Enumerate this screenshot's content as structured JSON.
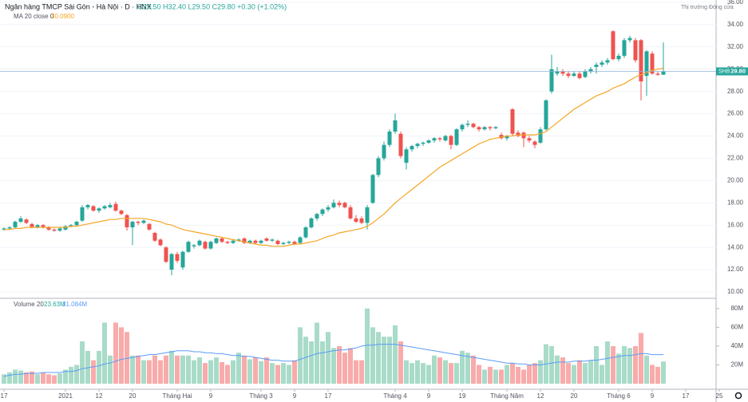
{
  "chart_data": [
    {
      "type": "candlestick",
      "title": "Ngân hàng TMCP Sài Gòn - Hà Nội · D · HNX",
      "ohlc_label": "O29.50 H32.40 L29.50 C29.80 +0.30 (+1.02%)",
      "market_status": "Thị trường Đóng cửa",
      "last_label": {
        "symbol": "SHB",
        "price": "29.80"
      },
      "up_color": "#26a69a",
      "down_color": "#ef5350",
      "ylim": [
        9.5,
        36.21
      ],
      "xlim": [
        -0.714,
        127.43
      ],
      "grid": true,
      "yticks": [
        {
          "value": 10,
          "label": "10.00"
        },
        {
          "value": 12,
          "label": "12.00"
        },
        {
          "value": 14,
          "label": "14.00"
        },
        {
          "value": 16,
          "label": "16.00"
        },
        {
          "value": 18,
          "label": "18.00"
        },
        {
          "value": 20,
          "label": "20.00"
        },
        {
          "value": 22,
          "label": "22.00"
        },
        {
          "value": 24,
          "label": "24.00"
        },
        {
          "value": 26,
          "label": "26.00"
        },
        {
          "value": 28,
          "label": "28.00"
        },
        {
          "value": 30,
          "label": "30.00"
        },
        {
          "value": 32,
          "label": "32.00"
        },
        {
          "value": 34,
          "label": "34.00"
        },
        {
          "value": 36,
          "label": "36.00"
        }
      ],
      "xticks": [
        {
          "value": 0,
          "label": "17"
        },
        {
          "value": 11,
          "label": "2021"
        },
        {
          "value": 17,
          "label": "12"
        },
        {
          "value": 23,
          "label": "20"
        },
        {
          "value": 31,
          "label": "Tháng Hai"
        },
        {
          "value": 37,
          "label": "9"
        },
        {
          "value": 46,
          "label": "Tháng 3"
        },
        {
          "value": 52,
          "label": "9"
        },
        {
          "value": 58,
          "label": "17"
        },
        {
          "value": 70,
          "label": "Tháng 4"
        },
        {
          "value": 76,
          "label": "9"
        },
        {
          "value": 82,
          "label": "19"
        },
        {
          "value": 90,
          "label": "Tháng Năm"
        },
        {
          "value": 96,
          "label": "12"
        },
        {
          "value": 102,
          "label": "20"
        },
        {
          "value": 110,
          "label": "Tháng 6"
        },
        {
          "value": 116,
          "label": "9"
        },
        {
          "value": 122,
          "label": "17"
        },
        {
          "value": 128,
          "label": "25"
        }
      ],
      "open": [
        15.6,
        15.7,
        15.8,
        16.3,
        16.5,
        16.1,
        15.8,
        16.0,
        15.8,
        15.6,
        15.5,
        15.6,
        15.9,
        16.0,
        16.4,
        17.6,
        17.7,
        17.3,
        17.5,
        17.6,
        17.9,
        17.3,
        16.9,
        15.8,
        16.3,
        16.2,
        16.1,
        15.3,
        14.7,
        14.0,
        12.0,
        13.4,
        12.2,
        13.6,
        14.1,
        14.2,
        14.5,
        13.9,
        14.4,
        14.8,
        14.5,
        14.4,
        14.6,
        14.8,
        14.4,
        14.6,
        14.4,
        14.8,
        14.6,
        14.6,
        14.3,
        14.4,
        14.5,
        14.4,
        14.9,
        15.8,
        16.6,
        17.0,
        17.4,
        17.6,
        18.0,
        18.0,
        17.6,
        16.6,
        16.6,
        16.2,
        18.0,
        20.5,
        22.0,
        23.2,
        24.4,
        24.2,
        21.6,
        22.8,
        23.1,
        23.3,
        23.4,
        23.6,
        23.8,
        23.6,
        24.0,
        23.2,
        24.6,
        25.0,
        25.1,
        24.8,
        24.6,
        24.8,
        24.7,
        24.1,
        23.8,
        26.4,
        24.3,
        24.3,
        23.8,
        23.5,
        23.4,
        24.6,
        28.0,
        29.6,
        29.8,
        29.6,
        29.4,
        29.6,
        29.3,
        29.8,
        30.2,
        30.4,
        30.6,
        33.4,
        30.9,
        31.2,
        32.6,
        32.6,
        32.6,
        29.4,
        31.4,
        29.6,
        29.5
      ],
      "high": [
        15.8,
        15.9,
        16.4,
        16.8,
        16.6,
        16.2,
        16.1,
        16.1,
        15.9,
        15.7,
        15.8,
        16.0,
        16.1,
        16.4,
        17.8,
        17.9,
        17.8,
        17.6,
        17.8,
        18.0,
        18.1,
        17.4,
        17.0,
        16.4,
        16.4,
        16.5,
        16.2,
        15.4,
        14.8,
        14.1,
        13.5,
        13.6,
        13.7,
        14.6,
        14.3,
        14.7,
        14.6,
        14.6,
        14.9,
        14.9,
        14.6,
        14.7,
        14.8,
        14.9,
        14.7,
        14.7,
        14.7,
        14.9,
        14.8,
        14.7,
        14.5,
        14.6,
        14.6,
        15.0,
        15.9,
        16.7,
        17.1,
        17.5,
        17.8,
        18.3,
        18.2,
        18.1,
        17.8,
        16.9,
        16.8,
        17.8,
        20.6,
        22.2,
        23.5,
        24.6,
        26.0,
        24.4,
        23.0,
        23.2,
        23.4,
        23.5,
        23.7,
        23.9,
        23.9,
        24.1,
        24.1,
        24.7,
        25.1,
        25.4,
        25.2,
        24.9,
        24.9,
        24.9,
        24.9,
        24.3,
        24.1,
        26.5,
        24.5,
        24.4,
        24.0,
        23.6,
        24.8,
        27.3,
        31.3,
        30.2,
        30.0,
        29.8,
        29.8,
        29.8,
        30.0,
        30.2,
        30.6,
        30.8,
        31.0,
        33.5,
        31.4,
        32.8,
        33.0,
        32.8,
        32.7,
        31.7,
        31.6,
        29.8,
        32.4
      ],
      "low": [
        15.5,
        15.6,
        15.7,
        16.2,
        16.1,
        15.7,
        15.7,
        15.7,
        15.5,
        15.4,
        15.4,
        15.5,
        15.8,
        15.9,
        16.3,
        17.4,
        17.2,
        17.1,
        17.4,
        17.5,
        17.2,
        16.9,
        15.5,
        14.2,
        16.0,
        16.1,
        15.5,
        14.5,
        14.1,
        12.6,
        11.5,
        12.6,
        12.0,
        13.5,
        13.9,
        14.1,
        13.8,
        13.8,
        14.3,
        14.4,
        14.3,
        14.3,
        14.5,
        14.3,
        14.3,
        14.3,
        14.3,
        14.5,
        14.5,
        14.2,
        14.2,
        14.3,
        14.2,
        14.3,
        14.8,
        15.7,
        16.4,
        16.8,
        17.2,
        17.5,
        17.6,
        17.5,
        16.5,
        16.2,
        16.1,
        15.6,
        17.9,
        20.3,
        21.8,
        23.0,
        24.2,
        22.0,
        21.0,
        22.6,
        22.9,
        23.1,
        23.3,
        23.4,
        23.5,
        23.5,
        22.8,
        23.1,
        24.4,
        24.8,
        24.7,
        24.4,
        24.5,
        24.5,
        24.6,
        23.7,
        23.6,
        24.0,
        23.9,
        23.0,
        23.4,
        22.9,
        23.3,
        24.5,
        27.8,
        29.4,
        29.4,
        29.2,
        29.3,
        29.1,
        29.2,
        29.6,
        29.6,
        30.2,
        30.4,
        30.8,
        30.7,
        31.0,
        32.4,
        30.6,
        27.2,
        27.6,
        29.5,
        29.4,
        29.5
      ],
      "close": [
        15.7,
        15.8,
        16.3,
        16.6,
        16.2,
        15.8,
        16.0,
        15.8,
        15.6,
        15.5,
        15.7,
        15.9,
        16.0,
        16.3,
        17.6,
        17.8,
        17.3,
        17.5,
        17.7,
        17.8,
        17.3,
        17.0,
        15.8,
        16.3,
        16.2,
        16.4,
        15.6,
        14.6,
        14.2,
        12.7,
        13.4,
        12.8,
        13.6,
        14.5,
        14.2,
        14.6,
        13.9,
        14.5,
        14.8,
        14.5,
        14.4,
        14.6,
        14.7,
        14.4,
        14.6,
        14.4,
        14.6,
        14.6,
        14.7,
        14.3,
        14.4,
        14.5,
        14.3,
        14.9,
        15.8,
        16.6,
        17.0,
        17.4,
        17.6,
        18.0,
        17.8,
        17.6,
        16.6,
        16.3,
        16.2,
        17.6,
        20.5,
        22.0,
        23.2,
        24.4,
        25.4,
        22.2,
        22.8,
        23.1,
        23.3,
        23.4,
        23.6,
        23.8,
        23.7,
        24.0,
        23.2,
        24.6,
        25.0,
        25.1,
        24.8,
        24.6,
        24.8,
        24.7,
        24.8,
        23.8,
        24.0,
        24.2,
        24.0,
        23.8,
        23.6,
        23.2,
        24.6,
        27.2,
        30.0,
        29.8,
        29.6,
        29.4,
        29.6,
        29.2,
        29.8,
        30.0,
        30.4,
        30.6,
        30.8,
        30.9,
        31.2,
        32.6,
        32.8,
        30.8,
        28.9,
        31.6,
        29.6,
        29.5,
        29.8
      ],
      "series": [
        {
          "name": "MA 20 close 0",
          "value_label": "30.0900",
          "color": "#f5a623",
          "values": [
            15.6,
            15.6,
            15.7,
            15.7,
            15.8,
            15.8,
            15.8,
            15.8,
            15.8,
            15.8,
            15.8,
            15.8,
            15.9,
            15.9,
            16.0,
            16.1,
            16.2,
            16.3,
            16.4,
            16.5,
            16.5,
            16.6,
            16.6,
            16.6,
            16.6,
            16.6,
            16.5,
            16.4,
            16.3,
            16.1,
            16.0,
            15.8,
            15.6,
            15.5,
            15.4,
            15.3,
            15.2,
            15.1,
            15.0,
            14.9,
            14.8,
            14.7,
            14.6,
            14.5,
            14.4,
            14.3,
            14.2,
            14.2,
            14.1,
            14.1,
            14.1,
            14.2,
            14.3,
            14.3,
            14.4,
            14.5,
            14.6,
            14.8,
            15.0,
            15.1,
            15.3,
            15.4,
            15.5,
            15.6,
            15.7,
            15.9,
            16.2,
            16.6,
            17.0,
            17.5,
            18.0,
            18.4,
            18.8,
            19.2,
            19.6,
            20.0,
            20.4,
            20.8,
            21.2,
            21.5,
            21.8,
            22.1,
            22.4,
            22.7,
            23.0,
            23.3,
            23.5,
            23.7,
            23.8,
            23.9,
            24.0,
            24.0,
            24.1,
            24.1,
            24.1,
            24.1,
            24.2,
            24.4,
            24.8,
            25.2,
            25.6,
            26.0,
            26.4,
            26.7,
            27.0,
            27.3,
            27.6,
            27.8,
            28.0,
            28.3,
            28.5,
            28.7,
            29.0,
            29.3,
            29.5,
            29.7,
            29.9,
            30.0,
            30.09
          ]
        }
      ]
    },
    {
      "type": "bar",
      "title": "Volume 20",
      "legend_values": [
        "23.63M",
        "31.084M"
      ],
      "up_color": "#a8dbc8",
      "down_color": "#f8abaa",
      "ylim": [
        -5,
        90
      ],
      "yticks": [
        {
          "value": 20,
          "label": "20M"
        },
        {
          "value": 40,
          "label": "40M"
        },
        {
          "value": 60,
          "label": "60M"
        },
        {
          "value": 80,
          "label": "80M"
        }
      ],
      "values": [
        10,
        12,
        15,
        14,
        12,
        13,
        10,
        12,
        10,
        9,
        11,
        15,
        18,
        20,
        45,
        35,
        25,
        35,
        65,
        30,
        65,
        60,
        55,
        30,
        30,
        25,
        25,
        30,
        25,
        30,
        35,
        30,
        30,
        30,
        25,
        28,
        22,
        25,
        28,
        23,
        20,
        25,
        33,
        30,
        26,
        28,
        24,
        28,
        22,
        20,
        22,
        20,
        25,
        60,
        50,
        45,
        65,
        45,
        55,
        38,
        40,
        33,
        38,
        25,
        25,
        80,
        60,
        55,
        50,
        50,
        62,
        45,
        25,
        22,
        25,
        22,
        20,
        30,
        28,
        25,
        22,
        22,
        35,
        33,
        30,
        20,
        15,
        18,
        15,
        15,
        20,
        22,
        18,
        15,
        20,
        22,
        25,
        42,
        40,
        30,
        28,
        22,
        20,
        25,
        22,
        25,
        40,
        20,
        45,
        40,
        32,
        40,
        38,
        40,
        54,
        30,
        20,
        18,
        23.63
      ],
      "series": [
        {
          "name": "Volume MA",
          "color": "#5b9cf6",
          "values": [
            8,
            9,
            10,
            10,
            11,
            11,
            11,
            12,
            12,
            12,
            12,
            13,
            13,
            14,
            16,
            17,
            18,
            19,
            21,
            22,
            24,
            26,
            27,
            28,
            29,
            30,
            31,
            31,
            32,
            33,
            34,
            35,
            35,
            35,
            34,
            34,
            33,
            33,
            32,
            32,
            31,
            30,
            30,
            29,
            29,
            28,
            27,
            26,
            25,
            25,
            24,
            24,
            24,
            26,
            28,
            30,
            32,
            33,
            34,
            35,
            36,
            36,
            37,
            38,
            40,
            41,
            41,
            42,
            42,
            42,
            42,
            41,
            40,
            39,
            38,
            37,
            36,
            35,
            34,
            33,
            32,
            31,
            30,
            29,
            28,
            27,
            26,
            25,
            24,
            23,
            22,
            22,
            21,
            21,
            20,
            20,
            20,
            21,
            22,
            23,
            23,
            23,
            24,
            24,
            24,
            25,
            25,
            26,
            27,
            28,
            29,
            30,
            30,
            31,
            32,
            32,
            31,
            31,
            31.084
          ]
        }
      ]
    }
  ]
}
